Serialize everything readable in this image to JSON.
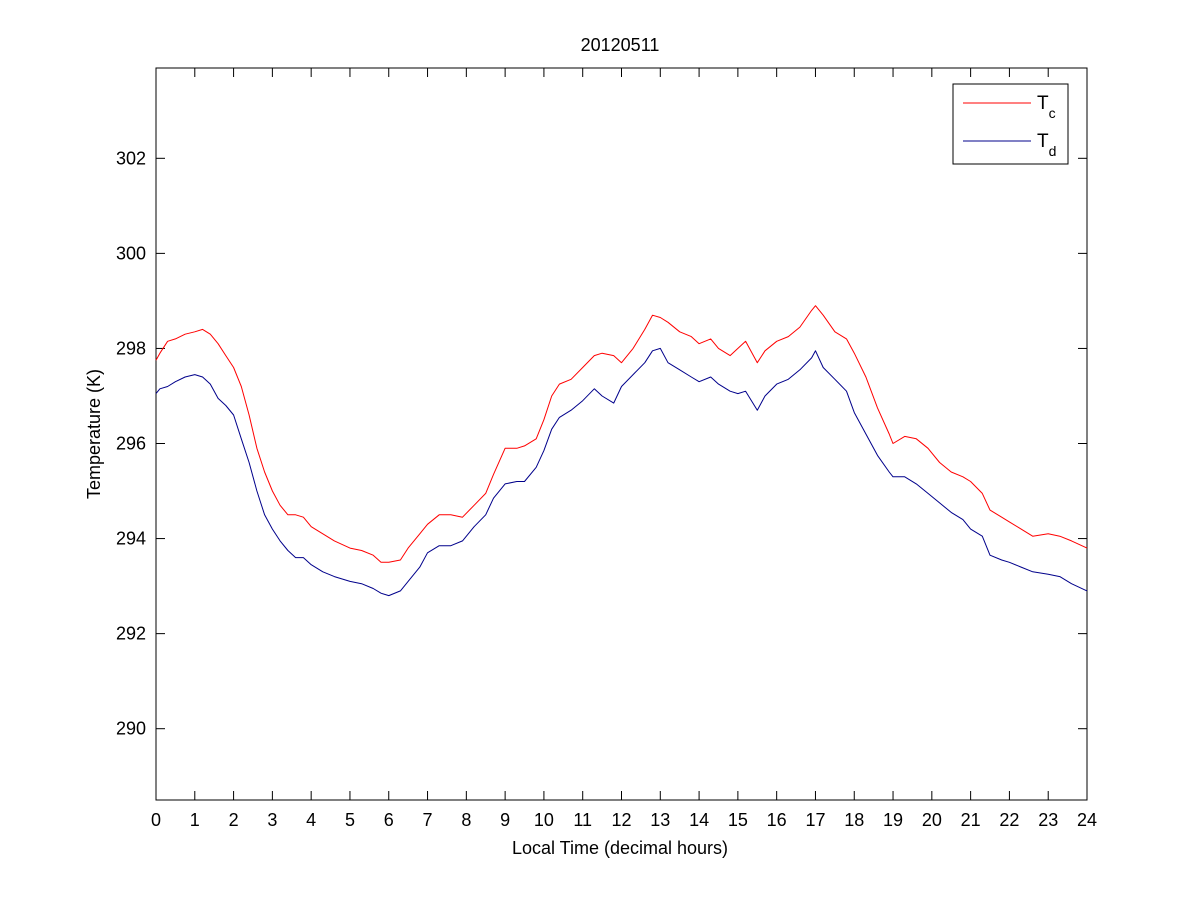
{
  "chart_data": {
    "type": "line",
    "title": "20120511",
    "xlabel": "Local Time (decimal hours)",
    "ylabel": "Temperature (K)",
    "xlim": [
      0,
      24
    ],
    "ylim": [
      288.5,
      303.9
    ],
    "xticks": [
      "0",
      "1",
      "2",
      "3",
      "4",
      "5",
      "6",
      "7",
      "8",
      "9",
      "10",
      "11",
      "12",
      "13",
      "14",
      "15",
      "16",
      "17",
      "18",
      "19",
      "20",
      "21",
      "22",
      "23",
      "24"
    ],
    "yticks": [
      "290",
      "292",
      "294",
      "296",
      "298",
      "300",
      "302"
    ],
    "grid": false,
    "legend_position": "top-right",
    "series": [
      {
        "name": "T",
        "name_subscript": "c",
        "color": "#ff0000",
        "x": [
          0,
          0.1,
          0.3,
          0.5,
          0.75,
          1.0,
          1.2,
          1.4,
          1.6,
          1.8,
          2.0,
          2.2,
          2.4,
          2.6,
          2.8,
          3.0,
          3.2,
          3.4,
          3.6,
          3.8,
          4.0,
          4.3,
          4.6,
          5.0,
          5.3,
          5.6,
          5.8,
          6.0,
          6.3,
          6.5,
          6.8,
          7.0,
          7.3,
          7.6,
          7.9,
          8.2,
          8.5,
          8.7,
          9.0,
          9.3,
          9.5,
          9.8,
          10.0,
          10.2,
          10.4,
          10.7,
          11.0,
          11.3,
          11.5,
          11.8,
          12.0,
          12.3,
          12.6,
          12.8,
          13.0,
          13.2,
          13.5,
          13.8,
          14.0,
          14.3,
          14.5,
          14.8,
          15.0,
          15.2,
          15.5,
          15.7,
          16.0,
          16.3,
          16.6,
          16.9,
          17.0,
          17.2,
          17.5,
          17.8,
          18.0,
          18.3,
          18.6,
          18.9,
          19.0,
          19.3,
          19.6,
          19.9,
          20.2,
          20.5,
          20.8,
          21.0,
          21.3,
          21.5,
          21.8,
          22.0,
          22.3,
          22.6,
          23.0,
          23.3,
          23.6,
          24.0
        ],
        "y": [
          297.75,
          297.9,
          298.15,
          298.2,
          298.3,
          298.35,
          298.4,
          298.3,
          298.1,
          297.85,
          297.6,
          297.2,
          296.6,
          295.9,
          295.4,
          295.0,
          294.7,
          294.5,
          294.5,
          294.45,
          294.25,
          294.1,
          293.95,
          293.8,
          293.75,
          293.65,
          293.5,
          293.5,
          293.55,
          293.8,
          294.1,
          294.3,
          294.5,
          294.5,
          294.45,
          294.7,
          294.95,
          295.35,
          295.9,
          295.9,
          295.95,
          296.1,
          296.5,
          297.0,
          297.25,
          297.35,
          297.6,
          297.85,
          297.9,
          297.85,
          297.7,
          298.0,
          298.4,
          298.7,
          298.65,
          298.55,
          298.35,
          298.25,
          298.1,
          298.2,
          298.0,
          297.85,
          298.0,
          298.15,
          297.7,
          297.95,
          298.15,
          298.25,
          298.45,
          298.8,
          298.9,
          298.7,
          298.35,
          298.2,
          297.9,
          297.4,
          296.75,
          296.2,
          296.0,
          296.15,
          296.1,
          295.9,
          295.6,
          295.4,
          295.3,
          295.2,
          294.95,
          294.6,
          294.45,
          294.35,
          294.2,
          294.05,
          294.1,
          294.05,
          293.95,
          293.8
        ]
      },
      {
        "name": "T",
        "name_subscript": "d",
        "color": "#00008b",
        "x": [
          0,
          0.1,
          0.3,
          0.5,
          0.75,
          1.0,
          1.2,
          1.4,
          1.6,
          1.8,
          2.0,
          2.2,
          2.4,
          2.6,
          2.8,
          3.0,
          3.2,
          3.4,
          3.6,
          3.8,
          4.0,
          4.3,
          4.6,
          5.0,
          5.3,
          5.6,
          5.8,
          6.0,
          6.3,
          6.5,
          6.8,
          7.0,
          7.3,
          7.6,
          7.9,
          8.2,
          8.5,
          8.7,
          9.0,
          9.3,
          9.5,
          9.8,
          10.0,
          10.2,
          10.4,
          10.7,
          11.0,
          11.3,
          11.5,
          11.8,
          12.0,
          12.3,
          12.6,
          12.8,
          13.0,
          13.2,
          13.5,
          13.8,
          14.0,
          14.3,
          14.5,
          14.8,
          15.0,
          15.2,
          15.5,
          15.7,
          16.0,
          16.3,
          16.6,
          16.9,
          17.0,
          17.2,
          17.5,
          17.8,
          18.0,
          18.3,
          18.6,
          18.9,
          19.0,
          19.3,
          19.6,
          19.9,
          20.2,
          20.5,
          20.8,
          21.0,
          21.3,
          21.5,
          21.8,
          22.0,
          22.3,
          22.6,
          23.0,
          23.3,
          23.6,
          24.0
        ],
        "y": [
          297.05,
          297.15,
          297.2,
          297.3,
          297.4,
          297.45,
          297.4,
          297.25,
          296.95,
          296.8,
          296.6,
          296.1,
          295.6,
          295.0,
          294.5,
          294.2,
          293.95,
          293.75,
          293.6,
          293.6,
          293.45,
          293.3,
          293.2,
          293.1,
          293.05,
          292.95,
          292.85,
          292.8,
          292.9,
          293.1,
          293.4,
          293.7,
          293.85,
          293.85,
          293.95,
          294.25,
          294.5,
          294.85,
          295.15,
          295.2,
          295.2,
          295.5,
          295.85,
          296.3,
          296.55,
          296.7,
          296.9,
          297.15,
          297.0,
          296.85,
          297.2,
          297.45,
          297.7,
          297.95,
          298.0,
          297.7,
          297.55,
          297.4,
          297.3,
          297.4,
          297.25,
          297.1,
          297.05,
          297.1,
          296.7,
          297.0,
          297.25,
          297.35,
          297.55,
          297.8,
          297.95,
          297.6,
          297.35,
          297.1,
          296.65,
          296.2,
          295.75,
          295.4,
          295.3,
          295.3,
          295.15,
          294.95,
          294.75,
          294.55,
          294.4,
          294.2,
          294.05,
          293.65,
          293.55,
          293.5,
          293.4,
          293.3,
          293.25,
          293.2,
          293.05,
          292.9
        ]
      }
    ]
  }
}
